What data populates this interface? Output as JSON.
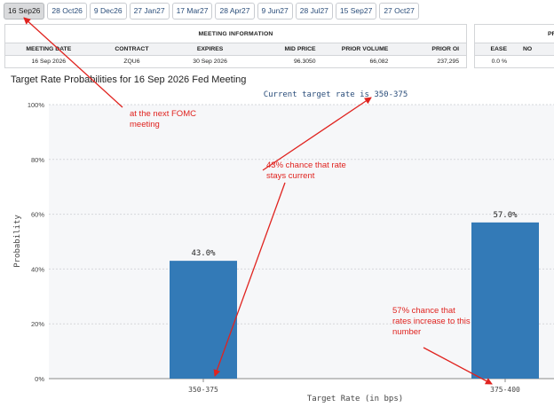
{
  "tabs": [
    {
      "label": "16 Sep26",
      "active": true
    },
    {
      "label": "28 Oct26",
      "active": false
    },
    {
      "label": "9 Dec26",
      "active": false
    },
    {
      "label": "27 Jan27",
      "active": false
    },
    {
      "label": "17 Mar27",
      "active": false
    },
    {
      "label": "28 Apr27",
      "active": false
    },
    {
      "label": "9 Jun27",
      "active": false
    },
    {
      "label": "28 Jul27",
      "active": false
    },
    {
      "label": "15 Sep27",
      "active": false
    },
    {
      "label": "27 Oct27",
      "active": false
    }
  ],
  "meeting_info": {
    "title": "MEETING INFORMATION",
    "columns": [
      "MEETING DATE",
      "CONTRACT",
      "EXPIRES",
      "MID PRICE",
      "PRIOR VOLUME",
      "PRIOR OI"
    ],
    "row": [
      "16 Sep 2026",
      "ZQU6",
      "30 Sep 2026",
      "96.3050",
      "66,082",
      "237,295"
    ]
  },
  "probabilities_table": {
    "title": "PR",
    "columns": [
      "EASE",
      "NO"
    ],
    "row": [
      "0.0 %",
      ""
    ]
  },
  "chart_title": "Target Rate Probabilities for 16 Sep 2026 Fed Meeting",
  "chart_data": {
    "type": "bar",
    "title": "Target Rate Probabilities for 16 Sep 2026 Fed Meeting",
    "subtitle": "Current target rate is 350-375",
    "xlabel": "Target Rate (in bps)",
    "ylabel": "Probability",
    "categories": [
      "350-375",
      "375-400"
    ],
    "values": [
      43.0,
      57.0
    ],
    "value_labels": [
      "43.0%",
      "57.0%"
    ],
    "ylim": [
      0,
      100
    ],
    "yticks": [
      "0%",
      "20%",
      "40%",
      "60%",
      "80%",
      "100%"
    ],
    "grid": true,
    "bar_color": "#337ab7"
  },
  "annotations": {
    "next_meeting": "at the next FOMC meeting",
    "stays_current": "43% chance that rate stays current",
    "increase": "57% chance that rates increase to this number",
    "color": "#e0231f"
  }
}
